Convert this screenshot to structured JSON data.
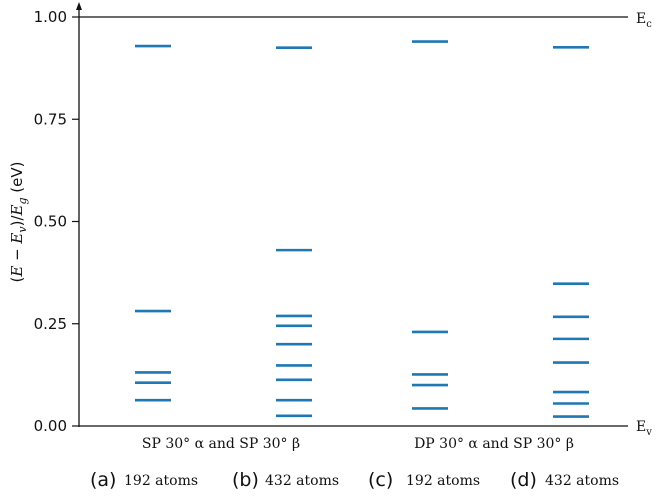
{
  "chart_data": {
    "type": "scatter",
    "marker": "horizontal-level-line",
    "color": "#1f77b4",
    "ylabel": "(E − E_v)/E_g (eV)",
    "ylabel_parts": [
      "(",
      "E",
      " − ",
      "E",
      "v",
      ")/",
      "E",
      "g",
      " (eV)"
    ],
    "ylim": [
      0.0,
      1.0
    ],
    "yticks": [
      "0.00",
      "0.25",
      "0.50",
      "0.75",
      "1.00"
    ],
    "ytick_values": [
      0.0,
      0.25,
      0.5,
      0.75,
      1.0
    ],
    "band_edges": {
      "top": {
        "value": 1.0,
        "label": "E",
        "sub": "c"
      },
      "bottom": {
        "value": 0.0,
        "label": "E",
        "sub": "v"
      }
    },
    "group_labels": [
      "SP 30° α and SP 30° β",
      "DP 30° α and SP 30° β"
    ],
    "series": [
      {
        "panel": "(a)",
        "atoms": "192 atoms",
        "group": 0,
        "values": [
          0.929,
          0.281,
          0.131,
          0.106,
          0.063
        ]
      },
      {
        "panel": "(b)",
        "atoms": "432 atoms",
        "group": 0,
        "values": [
          0.925,
          0.43,
          0.269,
          0.245,
          0.2,
          0.148,
          0.113,
          0.063,
          0.025
        ]
      },
      {
        "panel": "(c)",
        "atoms": "192 atoms",
        "group": 1,
        "values": [
          0.94,
          0.23,
          0.126,
          0.1,
          0.043
        ]
      },
      {
        "panel": "(d)",
        "atoms": "432 atoms",
        "group": 1,
        "values": [
          0.926,
          0.348,
          0.267,
          0.213,
          0.155,
          0.083,
          0.055,
          0.023
        ]
      }
    ]
  }
}
